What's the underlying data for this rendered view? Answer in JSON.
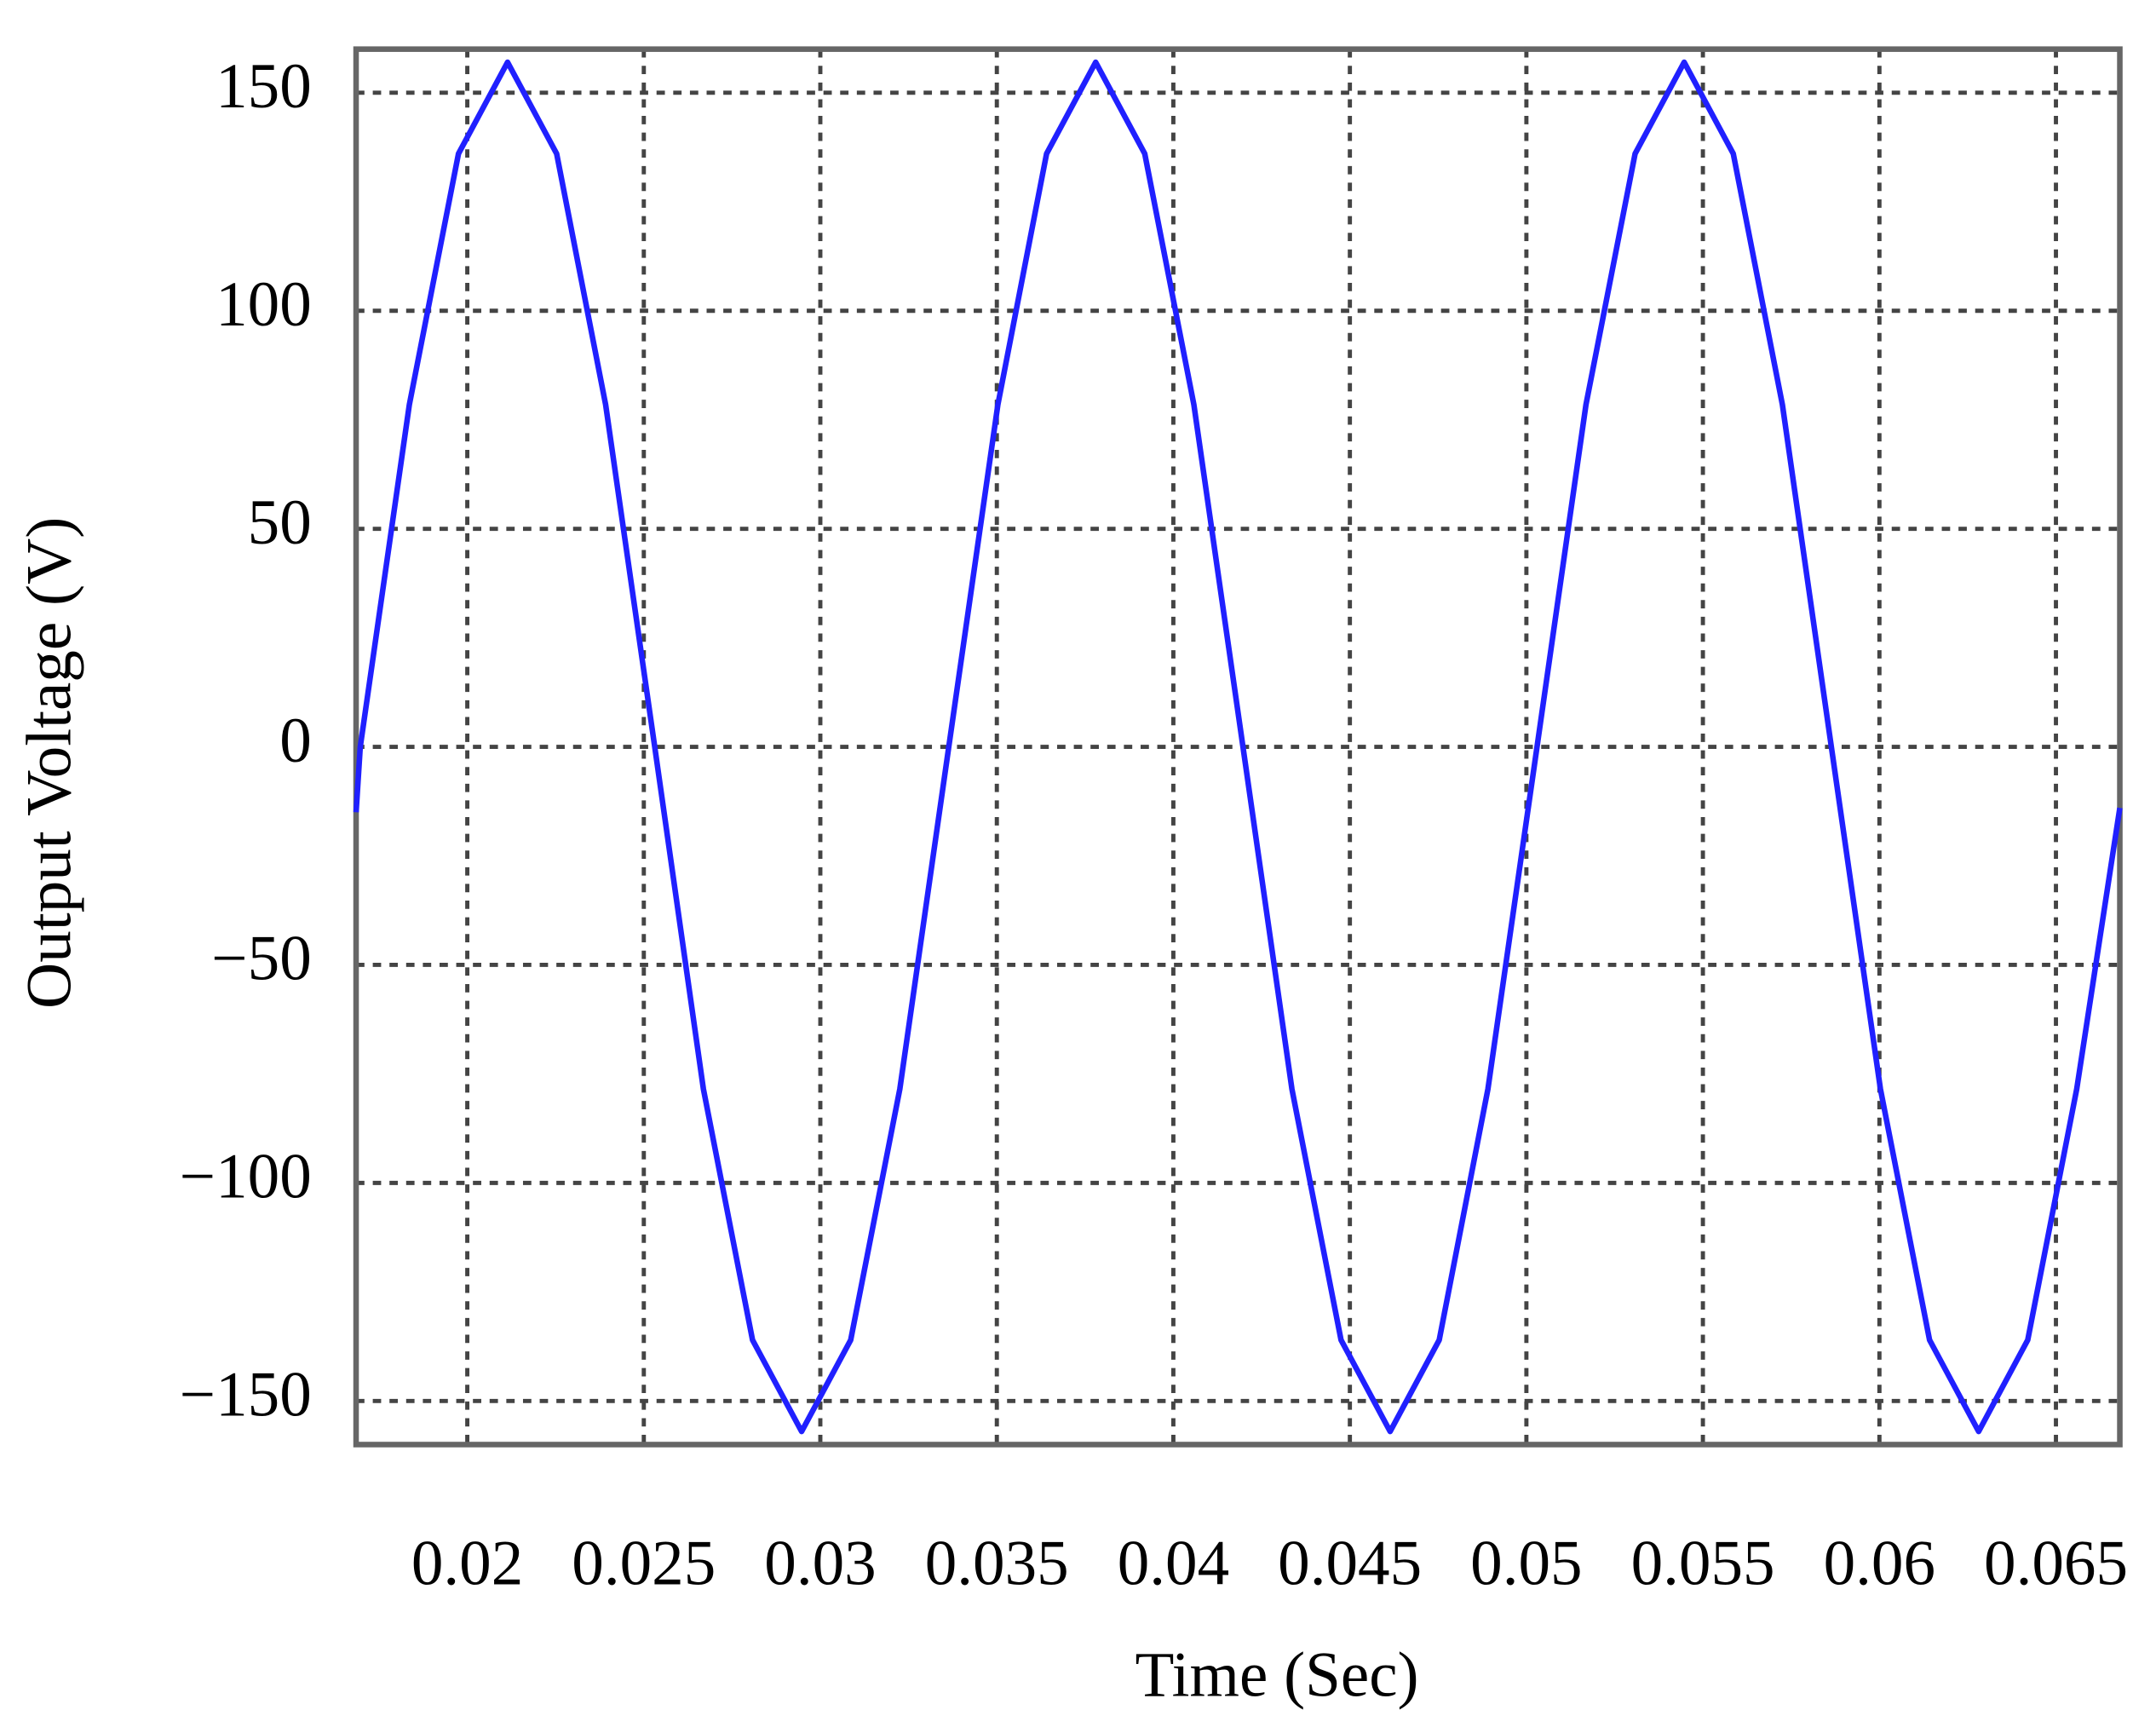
{
  "chart_data": {
    "type": "line",
    "xlabel": "Time (Sec)",
    "ylabel": "Output Voltage (V)",
    "xlim": [
      0.01685,
      0.06681
    ],
    "ylim": [
      -160,
      160
    ],
    "xticks": [
      0.02,
      0.025,
      0.03,
      0.035,
      0.04,
      0.045,
      0.05,
      0.055,
      0.06,
      0.065
    ],
    "yticks": [
      150,
      100,
      50,
      0,
      {
        "value": -50,
        "label": "−50"
      },
      {
        "value": -100,
        "label": "−100"
      },
      {
        "value": -150,
        "label": "−150"
      }
    ],
    "grid": true,
    "series": [
      {
        "color": "#2020ff",
        "x": [
          0.01685,
          0.01697,
          0.01836,
          0.01975,
          0.02114,
          0.02253,
          0.02392,
          0.02531,
          0.02669,
          0.02808,
          0.02947,
          0.03086,
          0.03225,
          0.03364,
          0.03503,
          0.03641,
          0.0378,
          0.03919,
          0.04058,
          0.04197,
          0.04336,
          0.04475,
          0.04614,
          0.04753,
          0.04891,
          0.0503,
          0.05169,
          0.05308,
          0.05447,
          0.05586,
          0.05725,
          0.05864,
          0.06003,
          0.06142,
          0.06281,
          0.0642,
          0.06559,
          0.06681
        ],
        "values": [
          -15,
          0,
          78.5,
          136,
          157,
          136,
          78.5,
          0,
          -78.5,
          -136,
          -157,
          -136,
          -78.5,
          0,
          78.5,
          136,
          157,
          136,
          78.5,
          0,
          -78.5,
          -136,
          -157,
          -136,
          -78.5,
          0,
          78.5,
          136,
          157,
          136,
          78.5,
          0,
          -78.5,
          -136,
          -157,
          -136,
          -78.5,
          -14
        ]
      }
    ]
  }
}
